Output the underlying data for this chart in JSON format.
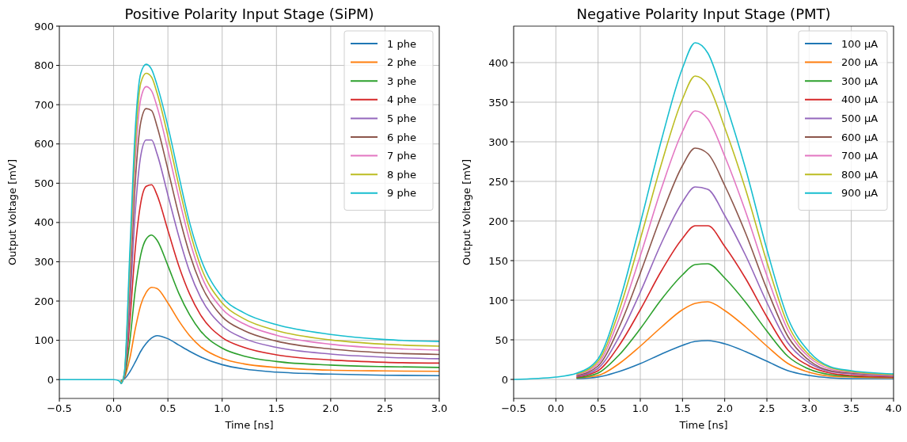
{
  "chart_data": [
    {
      "type": "line",
      "title": "Positive Polarity Input Stage (SiPM)",
      "xlabel": "Time [ns]",
      "ylabel": "Output Voltage [mV]",
      "x": [
        -0.5,
        0.0,
        0.05,
        0.07,
        0.1,
        0.15,
        0.2,
        0.25,
        0.3,
        0.35,
        0.4,
        0.5,
        0.6,
        0.7,
        0.8,
        1.0,
        1.2,
        1.5,
        2.0,
        2.5,
        3.0
      ],
      "xlim": [
        -0.5,
        3.0
      ],
      "ylim": [
        -48,
        900
      ],
      "xticks": [
        {
          "value": -0.5,
          "label": "−0.5"
        },
        {
          "value": 0,
          "label": "0.0"
        },
        {
          "value": 0.5,
          "label": "0.5"
        },
        {
          "value": 1,
          "label": "1.0"
        },
        {
          "value": 1.5,
          "label": "1.5"
        },
        {
          "value": 2,
          "label": "2.0"
        },
        {
          "value": 2.5,
          "label": "2.5"
        },
        {
          "value": 3,
          "label": "3.0"
        }
      ],
      "yticks": [
        0,
        100,
        200,
        300,
        400,
        500,
        600,
        700,
        800,
        900
      ],
      "grid": true,
      "legend": "top right",
      "series": [
        {
          "name": "1 phe",
          "color": "#1f77b4",
          "values": [
            null,
            null,
            null,
            -2,
            2,
            20,
            45,
            72,
            92,
            106,
            112,
            104,
            88,
            72,
            58,
            38,
            27,
            19,
            14,
            11,
            10
          ]
        },
        {
          "name": "2 phe",
          "color": "#ff7f0e",
          "values": [
            null,
            null,
            null,
            -4,
            5,
            55,
            130,
            190,
            222,
            235,
            232,
            195,
            150,
            112,
            84,
            54,
            40,
            31,
            24,
            22,
            21
          ]
        },
        {
          "name": "3 phe",
          "color": "#2ca02c",
          "values": [
            null,
            null,
            null,
            -6,
            7,
            100,
            230,
            318,
            358,
            368,
            355,
            290,
            220,
            165,
            124,
            80,
            60,
            46,
            37,
            33,
            31
          ]
        },
        {
          "name": "4 phe",
          "color": "#d62728",
          "values": [
            null,
            null,
            null,
            -8,
            10,
            150,
            335,
            450,
            492,
            496,
            470,
            380,
            290,
            218,
            165,
            107,
            82,
            63,
            50,
            44,
            42
          ]
        },
        {
          "name": "5 phe",
          "color": "#9467bd",
          "values": [
            null,
            null,
            null,
            -9,
            12,
            195,
            430,
            570,
            610,
            610,
            575,
            470,
            365,
            275,
            210,
            137,
            105,
            82,
            65,
            57,
            53
          ]
        },
        {
          "name": "6 phe",
          "color": "#8c564b",
          "values": [
            null,
            null,
            null,
            -10,
            14,
            235,
            505,
            655,
            690,
            685,
            645,
            535,
            420,
            320,
            245,
            160,
            125,
            98,
            78,
            68,
            64
          ]
        },
        {
          "name": "7 phe",
          "color": "#e377c2",
          "values": [
            null,
            null,
            null,
            -10,
            16,
            270,
            560,
            715,
            746,
            735,
            695,
            585,
            465,
            355,
            270,
            180,
            142,
            113,
            90,
            80,
            75
          ]
        },
        {
          "name": "8 phe",
          "color": "#bcbd22",
          "values": [
            null,
            null,
            null,
            -10,
            18,
            300,
            600,
            755,
            780,
            770,
            730,
            620,
            495,
            380,
            290,
            195,
            155,
            125,
            101,
            90,
            85
          ]
        },
        {
          "name": "9 phe",
          "color": "#17becf",
          "values": [
            0,
            0,
            -3,
            -10,
            20,
            330,
            640,
            780,
            803,
            790,
            750,
            645,
            520,
            400,
            310,
            210,
            170,
            140,
            115,
            102,
            97
          ]
        }
      ]
    },
    {
      "type": "line",
      "title": "Negative Polarity Input Stage (PMT)",
      "xlabel": "Time [ns]",
      "ylabel": "Output Voltage [mV]",
      "x": [
        -0.5,
        0,
        0.25,
        0.5,
        0.75,
        1.0,
        1.25,
        1.5,
        1.65,
        1.8,
        2.0,
        2.25,
        2.5,
        2.75,
        3.0,
        3.25,
        3.5,
        4.0
      ],
      "xlim": [
        -0.5,
        4.0
      ],
      "ylim": [
        -24,
        446
      ],
      "xticks": [
        {
          "value": -0.5,
          "label": "−0.5"
        },
        {
          "value": 0,
          "label": "0.0"
        },
        {
          "value": 0.5,
          "label": "0.5"
        },
        {
          "value": 1,
          "label": "1.0"
        },
        {
          "value": 1.5,
          "label": "1.5"
        },
        {
          "value": 2,
          "label": "2.0"
        },
        {
          "value": 2.5,
          "label": "2.5"
        },
        {
          "value": 3,
          "label": "3.0"
        },
        {
          "value": 3.5,
          "label": "3.5"
        },
        {
          "value": 4,
          "label": "4.0"
        }
      ],
      "yticks": [
        0,
        50,
        100,
        150,
        200,
        250,
        300,
        350,
        400
      ],
      "grid": true,
      "legend": "top right",
      "series": [
        {
          "name": "100 µA",
          "color": "#1f77b4",
          "values": [
            null,
            null,
            1,
            3,
            10,
            20,
            32,
            43,
            48,
            49,
            45,
            35,
            23,
            11,
            5,
            2,
            1,
            1
          ]
        },
        {
          "name": "200 µA",
          "color": "#ff7f0e",
          "values": [
            null,
            null,
            2,
            5,
            20,
            42,
            66,
            88,
            96,
            98,
            87,
            66,
            42,
            20,
            9,
            4,
            3,
            2
          ]
        },
        {
          "name": "300 µA",
          "color": "#2ca02c",
          "values": [
            null,
            null,
            2,
            8,
            31,
            64,
            101,
            132,
            145,
            146,
            128,
            97,
            61,
            29,
            13,
            6,
            4,
            3
          ]
        },
        {
          "name": "400 µA",
          "color": "#d62728",
          "values": [
            null,
            null,
            3,
            11,
            43,
            88,
            137,
            178,
            194,
            194,
            168,
            127,
            79,
            37,
            17,
            8,
            5,
            3
          ]
        },
        {
          "name": "500 µA",
          "color": "#9467bd",
          "values": [
            null,
            null,
            4,
            14,
            54,
            110,
            172,
            224,
            243,
            240,
            207,
            156,
            97,
            46,
            21,
            10,
            7,
            4
          ]
        },
        {
          "name": "600 µA",
          "color": "#8c564b",
          "values": [
            null,
            null,
            5,
            17,
            66,
            134,
            207,
            270,
            292,
            285,
            245,
            184,
            114,
            54,
            24,
            11,
            8,
            5
          ]
        },
        {
          "name": "700 µA",
          "color": "#e377c2",
          "values": [
            null,
            null,
            6,
            20,
            77,
            156,
            241,
            313,
            339,
            329,
            282,
            211,
            131,
            62,
            28,
            13,
            9,
            5
          ]
        },
        {
          "name": "800 µA",
          "color": "#bcbd22",
          "values": [
            null,
            null,
            7,
            23,
            87,
            177,
            272,
            354,
            383,
            372,
            318,
            239,
            148,
            69,
            31,
            15,
            10,
            6
          ]
        },
        {
          "name": "900 µA",
          "color": "#17becf",
          "values": [
            0,
            3,
            8,
            26,
            97,
            197,
            302,
            393,
            425,
            412,
            352,
            265,
            164,
            77,
            35,
            16,
            11,
            7
          ]
        }
      ]
    }
  ]
}
